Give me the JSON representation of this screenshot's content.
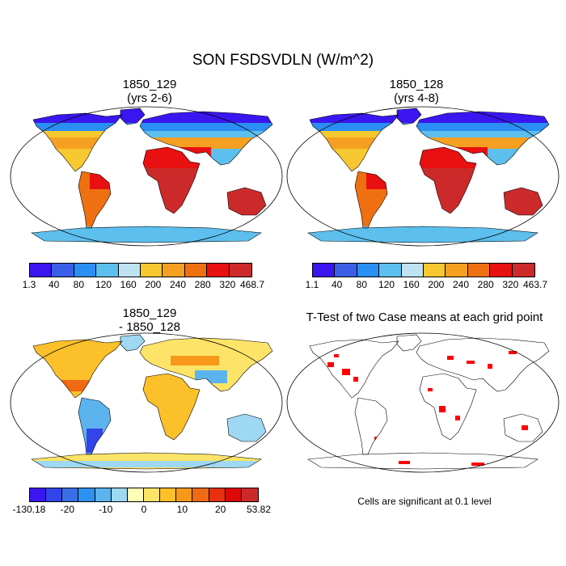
{
  "title": "SON FSDSVDLN (W/m^2)",
  "panels": [
    {
      "title_line1": "1850_129",
      "title_line2": "(yrs 2-6)",
      "ticks": [
        "1.3",
        "40",
        "80",
        "120",
        "160",
        "200",
        "240",
        "280",
        "320",
        "468.7"
      ]
    },
    {
      "title_line1": "1850_128",
      "title_line2": "(yrs 4-8)",
      "ticks": [
        "1.1",
        "40",
        "80",
        "120",
        "160",
        "200",
        "240",
        "280",
        "320",
        "463.7"
      ]
    },
    {
      "title_line1": "1850_129",
      "title_line2": "- 1850_128",
      "ticks": [
        "-130.18",
        "-20",
        "-10",
        "0",
        "10",
        "20",
        "53.82"
      ]
    },
    {
      "title_line1": "T-Test of two Case means at each grid point",
      "title_line2": ""
    }
  ],
  "note": "Cells are significant at 0.1 level",
  "colors": {
    "abs_scale": [
      "#3b16f0",
      "#3a5fe6",
      "#2a8ef2",
      "#5cbfee",
      "#bfe3f0",
      "#f7c830",
      "#f5a020",
      "#ef7010",
      "#e81010",
      "#cc2a2a"
    ],
    "diff_scale": [
      "#3b16f0",
      "#3344e8",
      "#3a6ee6",
      "#2e90f0",
      "#5cb4ee",
      "#9ed8f2",
      "#fefeb6",
      "#fde468",
      "#fbc02a",
      "#f7981a",
      "#ef6a12",
      "#e83010",
      "#dd0808",
      "#cc2a2a"
    ],
    "significance": "#ff0000",
    "coast": "#000000"
  }
}
